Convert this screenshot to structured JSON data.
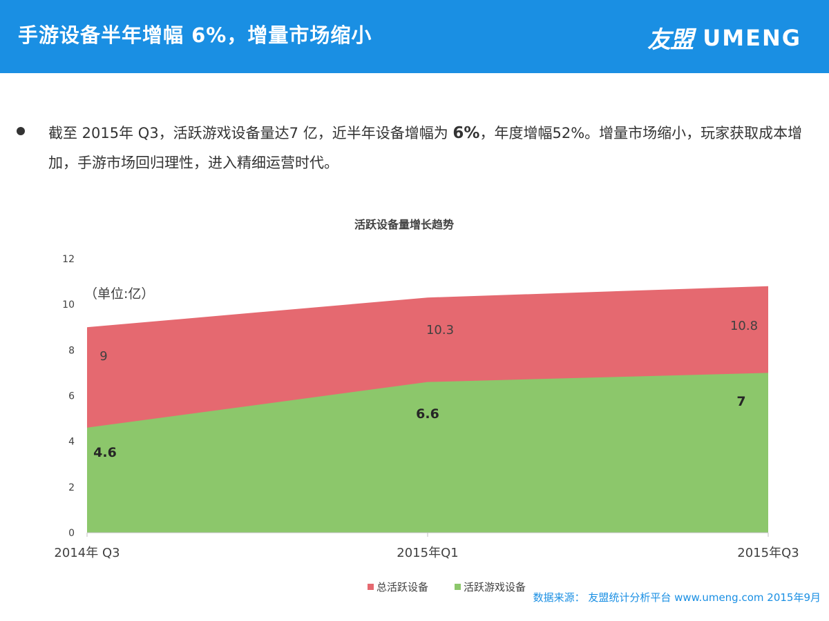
{
  "header": {
    "title": "手游设备半年增幅 6%，增量市场缩小",
    "logo_cn": "友盟",
    "logo_en": "UMENG"
  },
  "bullet": {
    "text_1": "截至 2015年 Q3，活跃游戏设备量达7 亿，近半年设备增幅为 ",
    "highlight": "6%",
    "text_2": "，年度增幅52%。增量市场缩小，玩家获取成本增加，手游市场回归理性，进入精细运营时代。"
  },
  "chart_data": {
    "type": "area",
    "title": "活跃设备量增长趋势",
    "unit_label": "（单位:亿）",
    "categories": [
      "2014年 Q3",
      "2015年Q1",
      "2015年Q3"
    ],
    "series": [
      {
        "name": "总活跃设备",
        "values": [
          9,
          10.3,
          10.8
        ],
        "color": "#e56970"
      },
      {
        "name": "活跃游戏设备",
        "values": [
          4.6,
          6.6,
          7
        ],
        "color": "#8cc76b"
      }
    ],
    "series_labels": [
      [
        "9",
        "10.3",
        "10.8"
      ],
      [
        "4.6",
        "6.6",
        "7"
      ]
    ],
    "y_ticks": [
      "0",
      "2",
      "4",
      "6",
      "8",
      "10",
      "12"
    ],
    "ylim": [
      0,
      12
    ],
    "legend_position": "bottom"
  },
  "source": "数据来源： 友盟统计分析平台 www.umeng.com  2015年9月"
}
